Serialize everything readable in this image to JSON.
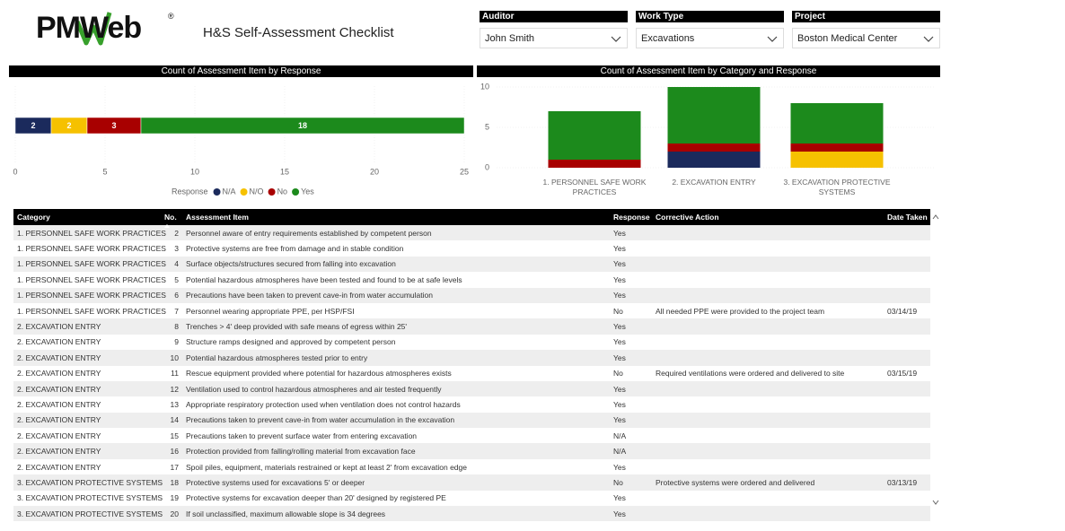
{
  "header": {
    "logo": "PMWeb",
    "logo_mark": "®",
    "title": "H&S Self-Assessment Checklist"
  },
  "filters": [
    {
      "label": "Auditor",
      "value": "John Smith"
    },
    {
      "label": "Work Type",
      "value": "Excavations"
    },
    {
      "label": "Project",
      "value": "Boston Medical Center"
    }
  ],
  "chart_data": [
    {
      "type": "stacked-barh",
      "title": "Count of Assessment Item by Response",
      "categories": [
        null
      ],
      "series": [
        {
          "name": "N/A",
          "color": "#1b2a5c",
          "values": [
            2
          ]
        },
        {
          "name": "N/O",
          "color": "#f6c100",
          "values": [
            2
          ]
        },
        {
          "name": "No",
          "color": "#a80000",
          "values": [
            3
          ]
        },
        {
          "name": "Yes",
          "color": "#1c8a1c",
          "values": [
            18
          ]
        }
      ],
      "xlim": [
        0,
        25
      ],
      "xticks": [
        0,
        5,
        10,
        15,
        20,
        25
      ],
      "grid": true,
      "legend_title": "Response",
      "legend": "bottom"
    },
    {
      "type": "stacked-bar",
      "title": "Count of Assessment Item by Category and Response",
      "categories": [
        "1. PERSONNEL SAFE WORK PRACTICES",
        "2. EXCAVATION ENTRY",
        "3. EXCAVATION PROTECTIVE SYSTEMS"
      ],
      "series": [
        {
          "name": "N/A",
          "color": "#1b2a5c",
          "values": [
            0,
            2,
            0
          ]
        },
        {
          "name": "N/O",
          "color": "#f6c100",
          "values": [
            0,
            0,
            2
          ]
        },
        {
          "name": "No",
          "color": "#a80000",
          "values": [
            1,
            1,
            1
          ]
        },
        {
          "name": "Yes",
          "color": "#1c8a1c",
          "values": [
            6,
            7,
            5
          ]
        }
      ],
      "ylim": [
        0,
        10
      ],
      "yticks": [
        0,
        5,
        10
      ],
      "grid": true
    }
  ],
  "table": {
    "columns": [
      "Category",
      "No.",
      "Assessment Item",
      "Response",
      "Corrective Action",
      "Date Taken"
    ],
    "rows": [
      {
        "category": "1. PERSONNEL SAFE WORK PRACTICES",
        "no": 2,
        "item": "Personnel aware of entry requirements established by competent person",
        "response": "Yes"
      },
      {
        "category": "1. PERSONNEL SAFE WORK PRACTICES",
        "no": 3,
        "item": "Protective systems are free from damage and in stable condition",
        "response": "Yes"
      },
      {
        "category": "1. PERSONNEL SAFE WORK PRACTICES",
        "no": 4,
        "item": "Surface objects/structures secured from falling into excavation",
        "response": "Yes"
      },
      {
        "category": "1. PERSONNEL SAFE WORK PRACTICES",
        "no": 5,
        "item": "Potential hazardous atmospheres have been tested and found to be at safe levels",
        "response": "Yes"
      },
      {
        "category": "1. PERSONNEL SAFE WORK PRACTICES",
        "no": 6,
        "item": "Precautions have been taken to prevent cave-in from water accumulation",
        "response": "Yes"
      },
      {
        "category": "1. PERSONNEL SAFE WORK PRACTICES",
        "no": 7,
        "item": "Personnel wearing appropriate PPE, per HSP/FSI",
        "response": "No",
        "action": "All needed PPE were provided to the project team",
        "date": "03/14/19"
      },
      {
        "category": "2. EXCAVATION ENTRY",
        "no": 8,
        "item": "Trenches > 4' deep provided with safe means of egress within 25'",
        "response": "Yes"
      },
      {
        "category": "2. EXCAVATION ENTRY",
        "no": 9,
        "item": "Structure ramps designed and approved by competent person",
        "response": "Yes"
      },
      {
        "category": "2. EXCAVATION ENTRY",
        "no": 10,
        "item": "Potential hazardous atmospheres tested prior to entry",
        "response": "Yes"
      },
      {
        "category": "2. EXCAVATION ENTRY",
        "no": 11,
        "item": "Rescue equipment provided where potential for hazardous atmospheres exists",
        "response": "No",
        "action": "Required ventilations were ordered and delivered to site",
        "date": "03/15/19"
      },
      {
        "category": "2. EXCAVATION ENTRY",
        "no": 12,
        "item": "Ventilation used to control hazardous atmospheres and air tested frequently",
        "response": "Yes"
      },
      {
        "category": "2. EXCAVATION ENTRY",
        "no": 13,
        "item": "Appropriate respiratory protection used when ventilation does not control hazards",
        "response": "Yes"
      },
      {
        "category": "2. EXCAVATION ENTRY",
        "no": 14,
        "item": "Precautions taken to prevent cave-in from water accumulation in the excavation",
        "response": "Yes"
      },
      {
        "category": "2. EXCAVATION ENTRY",
        "no": 15,
        "item": "Precautions taken to prevent surface water from entering excavation",
        "response": "N/A"
      },
      {
        "category": "2. EXCAVATION ENTRY",
        "no": 16,
        "item": "Protection provided from falling/rolling material from excavation face",
        "response": "N/A"
      },
      {
        "category": "2. EXCAVATION ENTRY",
        "no": 17,
        "item": "Spoil piles, equipment, materials restrained or kept at least 2' from excavation edge",
        "response": "Yes"
      },
      {
        "category": "3. EXCAVATION PROTECTIVE SYSTEMS",
        "no": 18,
        "item": "Protective systems used for excavations 5' or deeper",
        "response": "No",
        "action": "Protective systems were ordered and delivered",
        "date": "03/13/19"
      },
      {
        "category": "3. EXCAVATION PROTECTIVE SYSTEMS",
        "no": 19,
        "item": "Protective systems for excavation deeper than 20' designed by registered PE",
        "response": "Yes"
      },
      {
        "category": "3. EXCAVATION PROTECTIVE SYSTEMS",
        "no": 20,
        "item": "If soil unclassified, maximum allowable slope is 34 degrees",
        "response": "Yes"
      }
    ]
  }
}
